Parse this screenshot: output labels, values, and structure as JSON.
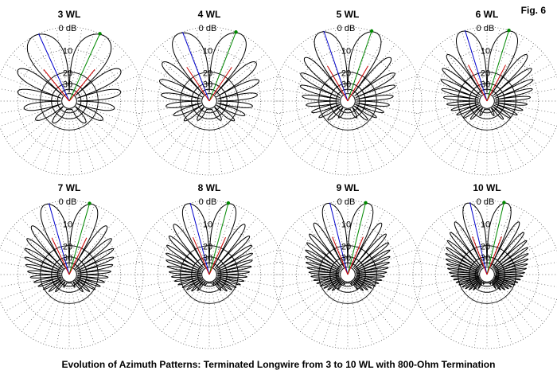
{
  "figure_label": "Fig. 6",
  "caption": "Evolution of Azimuth Patterns:  Terminated Longwire from 3 to 10 WL with 800-Ohm Termination",
  "colors": {
    "pattern": "#000000",
    "grid": "#555555",
    "blue_line": "#0000cc",
    "red_line": "#cc0000",
    "green_line": "#008800",
    "marker": "#008800"
  },
  "plot_labels": [
    "3 WL",
    "4 WL",
    "5 WL",
    "6 WL",
    "7 WL",
    "8 WL",
    "9 WL",
    "10 WL"
  ],
  "scale_labels": [
    "0 dB",
    "10",
    "20",
    "30"
  ],
  "chart_data": {
    "type": "polar",
    "description_axis": "azimuth pattern, dB scale",
    "rings_db": [
      0,
      10,
      20,
      30
    ],
    "patterns": [
      {
        "name": "3 WL",
        "wavelengths": 3
      },
      {
        "name": "4 WL",
        "wavelengths": 4
      },
      {
        "name": "5 WL",
        "wavelengths": 5
      },
      {
        "name": "6 WL",
        "wavelengths": 6
      },
      {
        "name": "7 WL",
        "wavelengths": 7
      },
      {
        "name": "8 WL",
        "wavelengths": 8
      },
      {
        "name": "9 WL",
        "wavelengths": 9
      },
      {
        "name": "10 WL",
        "wavelengths": 10
      }
    ]
  }
}
